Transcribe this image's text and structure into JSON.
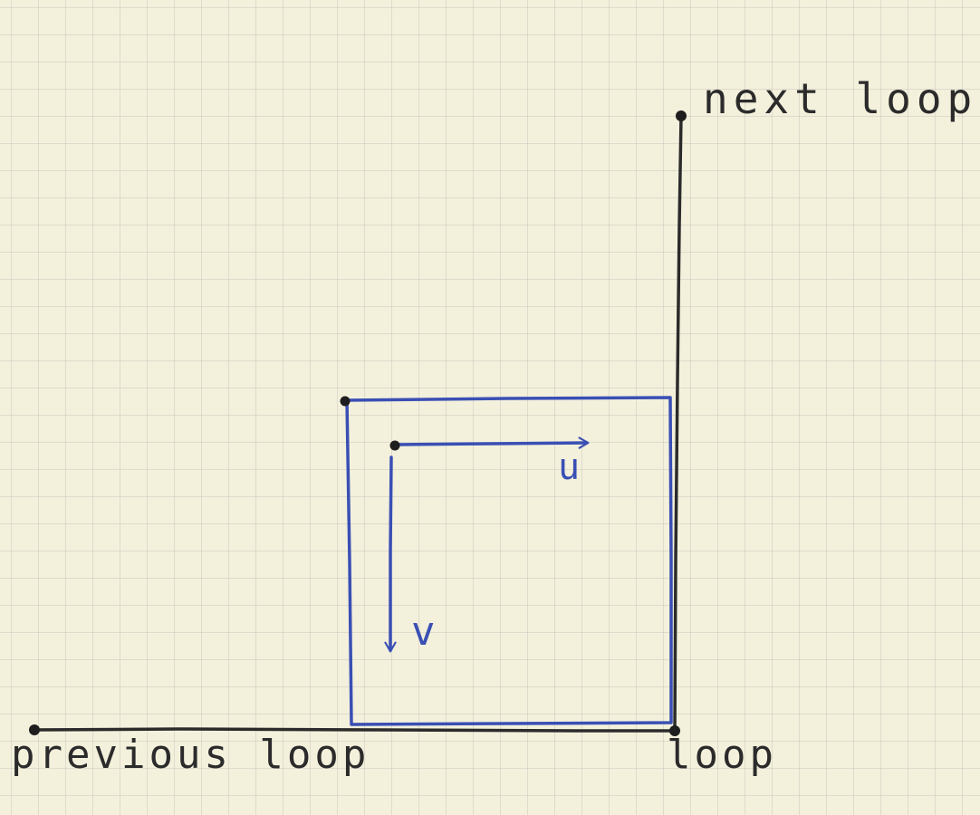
{
  "labels": {
    "next_loop": "next loop",
    "previous_loop": "previous loop",
    "loop": "loop",
    "u": "u",
    "v": "v"
  },
  "colors": {
    "ink_black": "#2b2b2b",
    "ink_blue": "#3a4fb4",
    "paper": "#f3f0dc"
  }
}
